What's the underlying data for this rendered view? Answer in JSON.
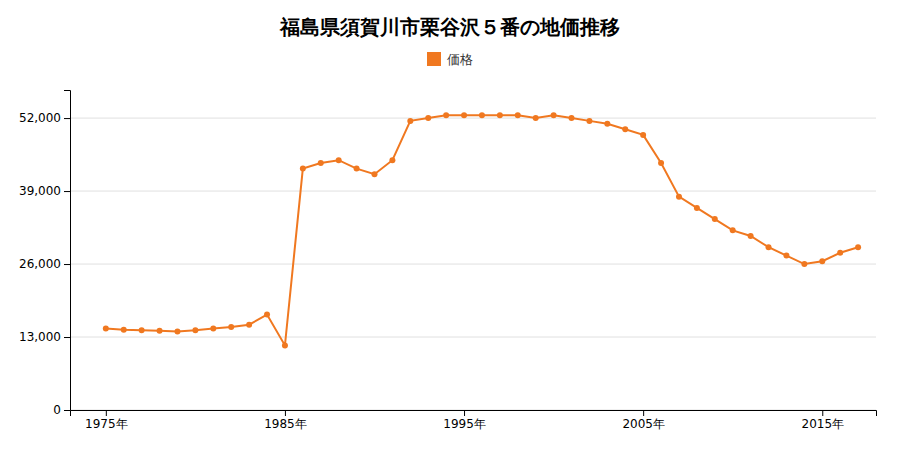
{
  "chart_data": {
    "type": "line",
    "title": "福島県須賀川市栗谷沢５番の地価推移",
    "x": [
      1975,
      1976,
      1977,
      1978,
      1979,
      1980,
      1981,
      1982,
      1983,
      1984,
      1985,
      1986,
      1987,
      1988,
      1989,
      1990,
      1991,
      1992,
      1993,
      1994,
      1995,
      1996,
      1997,
      1998,
      1999,
      2000,
      2001,
      2002,
      2003,
      2004,
      2005,
      2006,
      2007,
      2008,
      2009,
      2010,
      2011,
      2012,
      2013,
      2014,
      2015,
      2016,
      2017
    ],
    "series": [
      {
        "name": "価格",
        "color": "#f07820",
        "marker": "circle",
        "values": [
          14500,
          14300,
          14200,
          14100,
          14000,
          14200,
          14500,
          14800,
          15200,
          17000,
          11500,
          43000,
          44000,
          44500,
          43000,
          42000,
          44500,
          51500,
          52000,
          52500,
          52500,
          52500,
          52500,
          52500,
          52000,
          52500,
          52000,
          51500,
          51000,
          50000,
          49000,
          44000,
          38000,
          36000,
          34000,
          32000,
          31000,
          29000,
          27500,
          26000,
          26500,
          28000,
          29000
        ]
      }
    ],
    "xlim": [
      1973,
      2018
    ],
    "xticks": [
      {
        "value": 1975,
        "label": "1975年"
      },
      {
        "value": 1985,
        "label": "1985年"
      },
      {
        "value": 1995,
        "label": "1995年"
      },
      {
        "value": 2005,
        "label": "2005年"
      },
      {
        "value": 2015,
        "label": "2015年"
      }
    ],
    "ylim": [
      0,
      57000
    ],
    "yticks": [
      0,
      {
        "value": 13000,
        "label": "13,000"
      },
      {
        "value": 26000,
        "label": "26,000"
      },
      {
        "value": 39000,
        "label": "39,000"
      },
      {
        "value": 52000,
        "label": "52,000"
      }
    ],
    "grid": true,
    "legend": "top"
  }
}
